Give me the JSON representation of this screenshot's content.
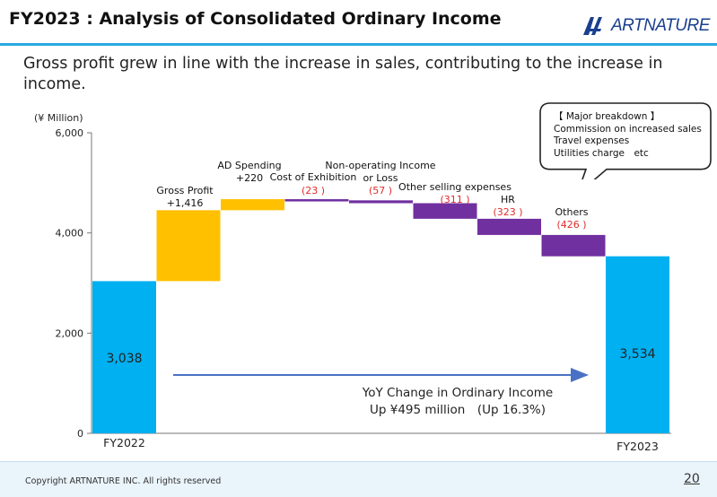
{
  "header": {
    "title": "FY2023 : Analysis of Consolidated Ordinary Income",
    "logo_text": "ARTNATURE"
  },
  "subtitle": "Gross profit grew in line with the increase in sales, contributing to the increase in income.",
  "callout": {
    "heading": "【 Major breakdown 】",
    "lines": [
      "Commission on increased sales",
      "Travel expenses",
      "Utilities charge　etc"
    ]
  },
  "footer": {
    "copyright": "Copyright ARTNATURE INC. All rights reserved",
    "page": "20"
  },
  "colors": {
    "total": "#00b0f0",
    "increase": "#ffc000",
    "decrease": "#7030a0",
    "negative_label": "#e02b2b",
    "arrow": "#4a72c4"
  },
  "chart_data": {
    "type": "bar",
    "variant": "waterfall",
    "unit_label": "(¥ Million)",
    "ylim": [
      0,
      6000
    ],
    "yticks": [
      "0",
      "2,000",
      "4,000",
      "6,000"
    ],
    "steps": [
      {
        "kind": "total",
        "value": 3038,
        "value_label": "3,038",
        "category": "FY2022"
      },
      {
        "kind": "increase",
        "value": 1416,
        "label_lines": [
          "Gross Profit",
          "+1,416"
        ]
      },
      {
        "kind": "increase",
        "value": 220,
        "label_lines": [
          "AD Spending",
          "+220"
        ]
      },
      {
        "kind": "decrease",
        "value": 23,
        "label_lines": [
          "Cost of Exhibition"
        ],
        "value_label": "(23 )"
      },
      {
        "kind": "decrease",
        "value": 57,
        "label_lines": [
          "Non-operating Income",
          "or Loss"
        ],
        "value_label": "(57 )"
      },
      {
        "kind": "decrease",
        "value": 311,
        "label_lines": [
          "Other selling expenses"
        ],
        "value_label": "(311 )"
      },
      {
        "kind": "decrease",
        "value": 323,
        "label_lines": [
          "HR"
        ],
        "value_label": "(323 )"
      },
      {
        "kind": "decrease",
        "value": 426,
        "label_lines": [
          "Others"
        ],
        "value_label": "(426 )"
      },
      {
        "kind": "total",
        "value": 3534,
        "value_label": "3,534",
        "category": "FY2023"
      }
    ],
    "annotation": [
      "YoY Change in Ordinary Income",
      "Up ¥495 million　(Up 16.3%)"
    ],
    "grid": false,
    "legend": "none"
  }
}
